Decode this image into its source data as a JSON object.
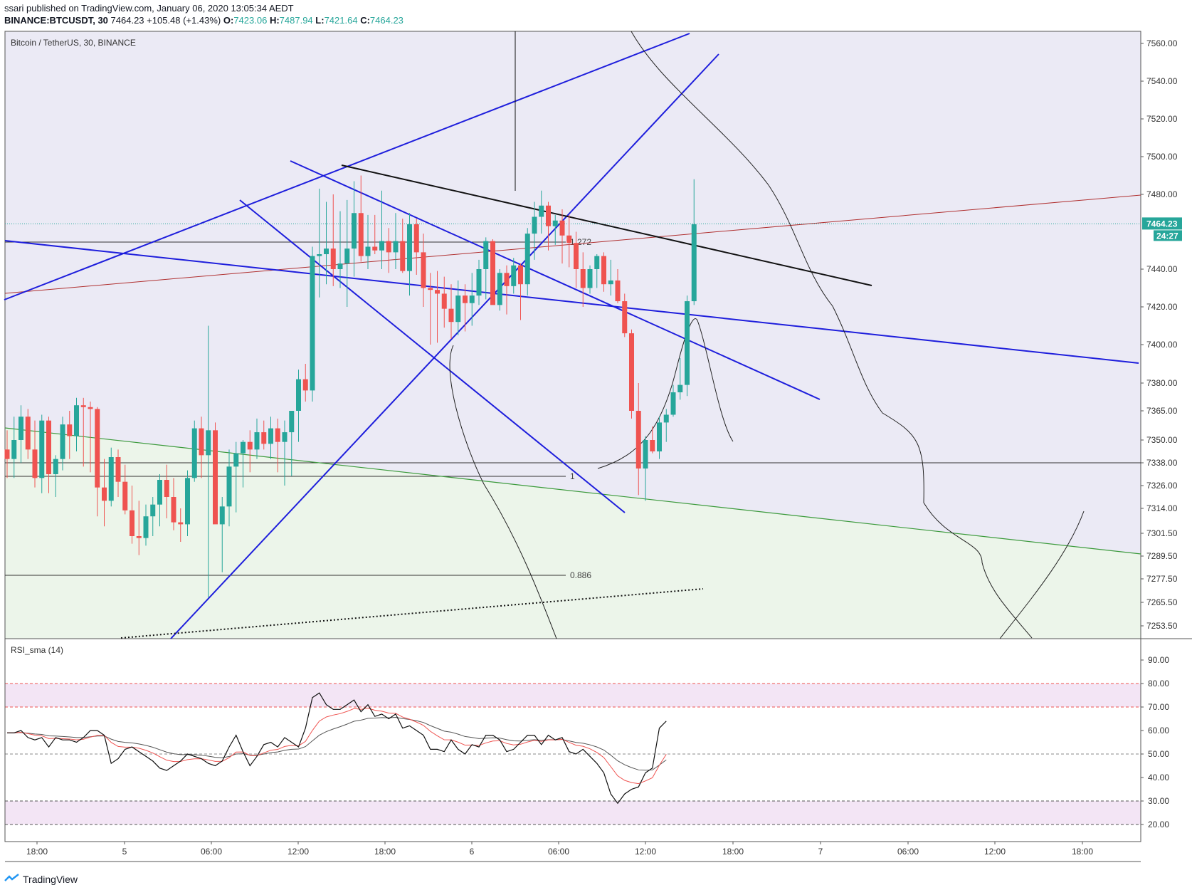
{
  "header": {
    "published": "ssari published on TradingView.com, January 06, 2020 13:05:34 AEDT",
    "symbol": "BINANCE:BTCUSDT, 30",
    "last": "7464.23",
    "change": "+105.48 (+1.43%)",
    "o_label": "O:",
    "o": "7423.06",
    "h_label": "H:",
    "h": "7487.94",
    "l_label": "L:",
    "l": "7421.64",
    "c_label": "C:",
    "c": "7464.23"
  },
  "footer": {
    "brand": "TradingView",
    "logo_icon": "tradingview-logo-icon"
  },
  "colors": {
    "up": "#26a69a",
    "down": "#ef5350",
    "trend": "#1e1edc",
    "bg_top": "#ebeaf5",
    "bg_bottom": "#ecf5ea"
  },
  "chart_data": [
    {
      "type": "candlestick",
      "title": "Bitcoin / TetherUS, 30, BINANCE",
      "price_ticks": [
        "7560.00",
        "7540.00",
        "7520.00",
        "7500.00",
        "7480.00",
        "7440.00",
        "7420.00",
        "7400.00",
        "7380.00",
        "7365.00",
        "7350.00",
        "7338.00",
        "7326.00",
        "7314.00",
        "7301.50",
        "7289.50",
        "7277.50",
        "7265.50",
        "7253.50"
      ],
      "time_ticks": [
        "18:00",
        "5",
        "06:00",
        "12:00",
        "18:00",
        "6",
        "06:00",
        "12:00",
        "18:00",
        "7",
        "06:00",
        "12:00",
        "18:00"
      ],
      "last_price": "7464.23",
      "countdown": "24:27",
      "fib_levels": [
        "1.272",
        "1",
        "0.886"
      ],
      "candles_ohlc": [
        [
          7345,
          7355,
          7330,
          7340
        ],
        [
          7340,
          7362,
          7330,
          7350
        ],
        [
          7350,
          7368,
          7338,
          7362
        ],
        [
          7362,
          7366,
          7340,
          7345
        ],
        [
          7345,
          7360,
          7325,
          7330
        ],
        [
          7330,
          7363,
          7322,
          7360
        ],
        [
          7360,
          7362,
          7322,
          7332
        ],
        [
          7332,
          7342,
          7320,
          7340
        ],
        [
          7340,
          7362,
          7334,
          7358
        ],
        [
          7358,
          7365,
          7340,
          7352
        ],
        [
          7352,
          7372,
          7344,
          7368
        ],
        [
          7368,
          7372,
          7336,
          7367
        ],
        [
          7367,
          7370,
          7333,
          7366
        ],
        [
          7366,
          7367,
          7310,
          7325
        ],
        [
          7325,
          7340,
          7305,
          7318
        ],
        [
          7318,
          7346,
          7315,
          7341
        ],
        [
          7341,
          7345,
          7320,
          7328
        ],
        [
          7328,
          7337,
          7311,
          7313
        ],
        [
          7313,
          7326,
          7296,
          7300
        ],
        [
          7300,
          7318,
          7290,
          7299
        ],
        [
          7299,
          7316,
          7295,
          7310
        ],
        [
          7310,
          7320,
          7300,
          7316
        ],
        [
          7316,
          7332,
          7305,
          7329
        ],
        [
          7329,
          7337,
          7309,
          7320
        ],
        [
          7320,
          7330,
          7303,
          7307
        ],
        [
          7307,
          7314,
          7297,
          7306
        ],
        [
          7306,
          7334,
          7300,
          7330
        ],
        [
          7330,
          7360,
          7328,
          7356
        ],
        [
          7356,
          7362,
          7330,
          7342
        ],
        [
          7342,
          7410,
          7268,
          7355
        ],
        [
          7355,
          7359,
          7314,
          7306
        ],
        [
          7306,
          7320,
          7281,
          7315
        ],
        [
          7315,
          7345,
          7305,
          7336
        ],
        [
          7336,
          7349,
          7312,
          7343
        ],
        [
          7343,
          7350,
          7325,
          7349
        ],
        [
          7349,
          7355,
          7333,
          7345
        ],
        [
          7345,
          7361,
          7340,
          7354
        ],
        [
          7354,
          7360,
          7345,
          7348
        ],
        [
          7348,
          7362,
          7340,
          7356
        ],
        [
          7356,
          7361,
          7333,
          7349
        ],
        [
          7349,
          7360,
          7326,
          7354
        ],
        [
          7354,
          7365,
          7331,
          7365
        ],
        [
          7365,
          7387,
          7349,
          7382
        ],
        [
          7382,
          7390,
          7370,
          7376
        ],
        [
          7376,
          7452,
          7370,
          7447
        ],
        [
          7447,
          7483,
          7425,
          7448
        ],
        [
          7448,
          7476,
          7432,
          7451
        ],
        [
          7451,
          7480,
          7431,
          7440
        ],
        [
          7440,
          7471,
          7430,
          7443
        ],
        [
          7443,
          7477,
          7420,
          7451
        ],
        [
          7451,
          7487,
          7436,
          7470
        ],
        [
          7470,
          7490,
          7444,
          7447
        ],
        [
          7447,
          7469,
          7440,
          7452
        ],
        [
          7452,
          7469,
          7448,
          7450
        ],
        [
          7450,
          7482,
          7440,
          7455
        ],
        [
          7455,
          7462,
          7438,
          7449
        ],
        [
          7449,
          7470,
          7440,
          7455
        ],
        [
          7455,
          7467,
          7438,
          7439
        ],
        [
          7439,
          7470,
          7426,
          7464
        ],
        [
          7464,
          7467,
          7437,
          7449
        ],
        [
          7449,
          7459,
          7420,
          7430
        ],
        [
          7430,
          7438,
          7400,
          7429
        ],
        [
          7429,
          7439,
          7401,
          7427
        ],
        [
          7427,
          7436,
          7409,
          7419
        ],
        [
          7419,
          7432,
          7403,
          7412
        ],
        [
          7412,
          7434,
          7405,
          7426
        ],
        [
          7426,
          7432,
          7407,
          7422
        ],
        [
          7422,
          7438,
          7410,
          7426
        ],
        [
          7426,
          7445,
          7421,
          7440
        ],
        [
          7440,
          7457,
          7424,
          7455
        ],
        [
          7455,
          7456,
          7426,
          7421
        ],
        [
          7421,
          7440,
          7418,
          7438
        ],
        [
          7438,
          7442,
          7416,
          7431
        ],
        [
          7431,
          7446,
          7427,
          7442
        ],
        [
          7442,
          7443,
          7413,
          7432
        ],
        [
          7432,
          7462,
          7426,
          7459
        ],
        [
          7459,
          7476,
          7445,
          7468
        ],
        [
          7468,
          7482,
          7459,
          7474
        ],
        [
          7474,
          7476,
          7450,
          7463
        ],
        [
          7463,
          7469,
          7453,
          7466
        ],
        [
          7466,
          7472,
          7443,
          7458
        ],
        [
          7458,
          7469,
          7441,
          7454
        ],
        [
          7454,
          7460,
          7430,
          7440
        ],
        [
          7440,
          7449,
          7420,
          7430
        ],
        [
          7430,
          7442,
          7427,
          7440
        ],
        [
          7440,
          7448,
          7430,
          7447
        ],
        [
          7447,
          7449,
          7428,
          7432
        ],
        [
          7432,
          7445,
          7426,
          7434
        ],
        [
          7434,
          7440,
          7422,
          7423
        ],
        [
          7423,
          7427,
          7404,
          7406
        ],
        [
          7406,
          7408,
          7361,
          7365
        ],
        [
          7365,
          7380,
          7321,
          7335
        ],
        [
          7335,
          7352,
          7318,
          7350
        ],
        [
          7350,
          7357,
          7343,
          7344
        ],
        [
          7344,
          7362,
          7340,
          7359
        ],
        [
          7359,
          7366,
          7349,
          7363
        ],
        [
          7363,
          7379,
          7362,
          7375
        ],
        [
          7375,
          7393,
          7371,
          7379
        ],
        [
          7379,
          7426,
          7373,
          7423
        ],
        [
          7423,
          7488,
          7421,
          7464
        ]
      ]
    },
    {
      "type": "line",
      "title": "RSI_sma (14)",
      "y_ticks": [
        "90.00",
        "80.00",
        "70.00",
        "60.00",
        "50.00",
        "40.00",
        "30.00",
        "20.00"
      ],
      "ylim": [
        15,
        95
      ],
      "bands": [
        [
          70,
          80
        ],
        [
          20,
          30
        ]
      ],
      "series": [
        {
          "values": [
            59,
            59,
            60,
            57,
            56,
            57,
            53,
            57,
            56,
            56,
            55,
            57,
            60,
            60,
            58,
            46,
            48,
            52,
            53,
            51,
            49,
            47,
            44,
            43,
            45,
            47,
            50,
            49,
            48,
            46,
            45,
            47,
            53,
            58,
            51,
            45,
            49,
            54,
            55,
            53,
            57,
            55,
            53,
            61,
            74,
            76,
            71,
            69,
            69,
            71,
            73,
            68,
            71,
            66,
            67,
            65,
            67,
            61,
            62,
            60,
            58,
            52,
            52,
            51,
            56,
            52,
            50,
            54,
            53,
            58,
            58,
            56,
            51,
            52,
            55,
            58,
            58,
            54,
            58,
            56,
            57,
            51,
            50,
            52,
            49,
            46,
            42,
            33,
            29,
            33,
            35,
            36,
            42,
            44,
            61,
            64
          ]
        }
      ]
    }
  ]
}
